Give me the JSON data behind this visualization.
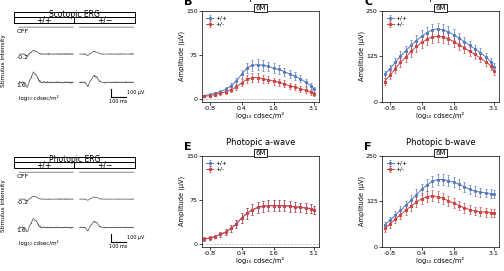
{
  "scotopic_awave": {
    "title": "Scotopic a-wave",
    "subtitle": "6M",
    "xlabel": "log₁₀ cdsec/m²",
    "ylabel": "Amplitude (μV)",
    "ylim": [
      -5,
      150
    ],
    "yticks": [
      0,
      75,
      150
    ],
    "xlim": [
      -1.1,
      3.3
    ],
    "xticks": [
      -0.8,
      0.4,
      1.6,
      3.1
    ],
    "x": [
      -1.0,
      -0.8,
      -0.6,
      -0.4,
      -0.2,
      0.0,
      0.2,
      0.4,
      0.6,
      0.8,
      1.0,
      1.2,
      1.4,
      1.6,
      1.8,
      2.0,
      2.2,
      2.4,
      2.6,
      2.8,
      3.0,
      3.1
    ],
    "wt_mean": [
      5,
      7,
      9,
      12,
      16,
      22,
      30,
      42,
      52,
      57,
      58,
      57,
      55,
      52,
      50,
      46,
      42,
      38,
      34,
      28,
      22,
      16
    ],
    "wt_err": [
      2,
      2,
      3,
      3,
      4,
      5,
      6,
      7,
      8,
      9,
      9,
      9,
      8,
      8,
      8,
      7,
      7,
      7,
      6,
      6,
      5,
      4
    ],
    "ko_mean": [
      4,
      5,
      7,
      9,
      12,
      15,
      20,
      27,
      33,
      36,
      36,
      34,
      32,
      30,
      28,
      25,
      22,
      20,
      17,
      14,
      11,
      8
    ],
    "ko_err": [
      2,
      2,
      3,
      3,
      4,
      4,
      5,
      6,
      7,
      7,
      7,
      7,
      6,
      6,
      6,
      6,
      5,
      5,
      5,
      5,
      4,
      4
    ]
  },
  "scotopic_bwave": {
    "title": "Scotopic b-wave",
    "subtitle": "6M",
    "xlabel": "log₁₀ cdsec/m²",
    "ylabel": "Amplitude (μV)",
    "ylim": [
      0,
      250
    ],
    "yticks": [
      0,
      125,
      250
    ],
    "xlim": [
      -1.1,
      3.3
    ],
    "xticks": [
      -0.8,
      0.4,
      1.6,
      3.1
    ],
    "x": [
      -1.0,
      -0.8,
      -0.6,
      -0.4,
      -0.2,
      0.0,
      0.2,
      0.4,
      0.6,
      0.8,
      1.0,
      1.2,
      1.4,
      1.6,
      1.8,
      2.0,
      2.2,
      2.4,
      2.6,
      2.8,
      3.0,
      3.1
    ],
    "wt_mean": [
      75,
      90,
      108,
      125,
      140,
      155,
      168,
      180,
      190,
      198,
      200,
      198,
      192,
      184,
      175,
      165,
      155,
      145,
      135,
      123,
      110,
      95
    ],
    "wt_err": [
      10,
      11,
      12,
      13,
      14,
      15,
      15,
      16,
      16,
      16,
      16,
      16,
      15,
      15,
      14,
      13,
      13,
      12,
      12,
      12,
      11,
      10
    ],
    "ko_mean": [
      55,
      72,
      90,
      108,
      123,
      138,
      152,
      163,
      172,
      178,
      180,
      178,
      173,
      165,
      157,
      148,
      138,
      130,
      120,
      110,
      98,
      83
    ],
    "ko_err": [
      10,
      11,
      12,
      13,
      14,
      15,
      15,
      16,
      16,
      16,
      16,
      16,
      15,
      15,
      14,
      13,
      13,
      12,
      12,
      12,
      11,
      10
    ]
  },
  "photopic_awave": {
    "title": "Photopic a-wave",
    "subtitle": "6M",
    "xlabel": "log₁₀ cdsec/m²",
    "ylabel": "Amplitude (μV)",
    "ylim": [
      -5,
      150
    ],
    "yticks": [
      0,
      75,
      150
    ],
    "xlim": [
      -1.1,
      3.3
    ],
    "xticks": [
      -0.8,
      0.4,
      1.6,
      3.1
    ],
    "x": [
      -1.0,
      -0.8,
      -0.6,
      -0.4,
      -0.2,
      0.0,
      0.2,
      0.4,
      0.6,
      0.8,
      1.0,
      1.2,
      1.4,
      1.6,
      1.8,
      2.0,
      2.2,
      2.4,
      2.6,
      2.8,
      3.0,
      3.1
    ],
    "wt_mean": [
      8,
      10,
      12,
      16,
      20,
      26,
      34,
      44,
      52,
      58,
      62,
      64,
      65,
      65,
      65,
      65,
      64,
      63,
      62,
      61,
      60,
      58
    ],
    "wt_err": [
      3,
      3,
      3,
      4,
      5,
      6,
      7,
      8,
      9,
      9,
      9,
      9,
      9,
      9,
      9,
      9,
      9,
      9,
      8,
      8,
      8,
      7
    ],
    "ko_mean": [
      8,
      10,
      12,
      16,
      20,
      26,
      34,
      44,
      52,
      58,
      62,
      64,
      65,
      65,
      65,
      65,
      64,
      63,
      62,
      61,
      60,
      58
    ],
    "ko_err": [
      3,
      3,
      3,
      4,
      5,
      6,
      7,
      8,
      9,
      9,
      9,
      9,
      9,
      9,
      9,
      9,
      9,
      9,
      8,
      8,
      8,
      7
    ]
  },
  "photopic_bwave": {
    "title": "Photopic b-wave",
    "subtitle": "6M",
    "xlabel": "log₁₀ cdsec/m²",
    "ylabel": "Amplitude (μV)",
    "ylim": [
      0,
      250
    ],
    "yticks": [
      0,
      125,
      250
    ],
    "xlim": [
      -1.1,
      3.3
    ],
    "xticks": [
      -0.8,
      0.4,
      1.6,
      3.1
    ],
    "x": [
      -1.0,
      -0.8,
      -0.6,
      -0.4,
      -0.2,
      0.0,
      0.2,
      0.4,
      0.6,
      0.8,
      1.0,
      1.2,
      1.4,
      1.6,
      1.8,
      2.0,
      2.2,
      2.4,
      2.6,
      2.8,
      3.0,
      3.1
    ],
    "wt_mean": [
      60,
      72,
      86,
      100,
      114,
      128,
      143,
      158,
      170,
      180,
      185,
      185,
      182,
      178,
      172,
      165,
      158,
      153,
      150,
      148,
      146,
      144
    ],
    "wt_err": [
      9,
      10,
      11,
      12,
      13,
      14,
      15,
      15,
      16,
      16,
      16,
      16,
      15,
      15,
      14,
      14,
      13,
      13,
      12,
      12,
      12,
      11
    ],
    "ko_mean": [
      50,
      62,
      75,
      88,
      100,
      112,
      123,
      132,
      138,
      140,
      138,
      133,
      126,
      120,
      113,
      107,
      102,
      98,
      96,
      95,
      94,
      93
    ],
    "ko_err": [
      9,
      10,
      11,
      12,
      13,
      14,
      15,
      15,
      15,
      15,
      15,
      15,
      14,
      14,
      13,
      13,
      12,
      12,
      12,
      12,
      11,
      11
    ]
  },
  "wt_color": "#5577bb",
  "ko_color": "#cc4444",
  "wt_label": "+/+",
  "ko_label": "+/-",
  "scotopic_ergt": "Scotopic ERG",
  "photopic_ergt": "Photopic ERG"
}
